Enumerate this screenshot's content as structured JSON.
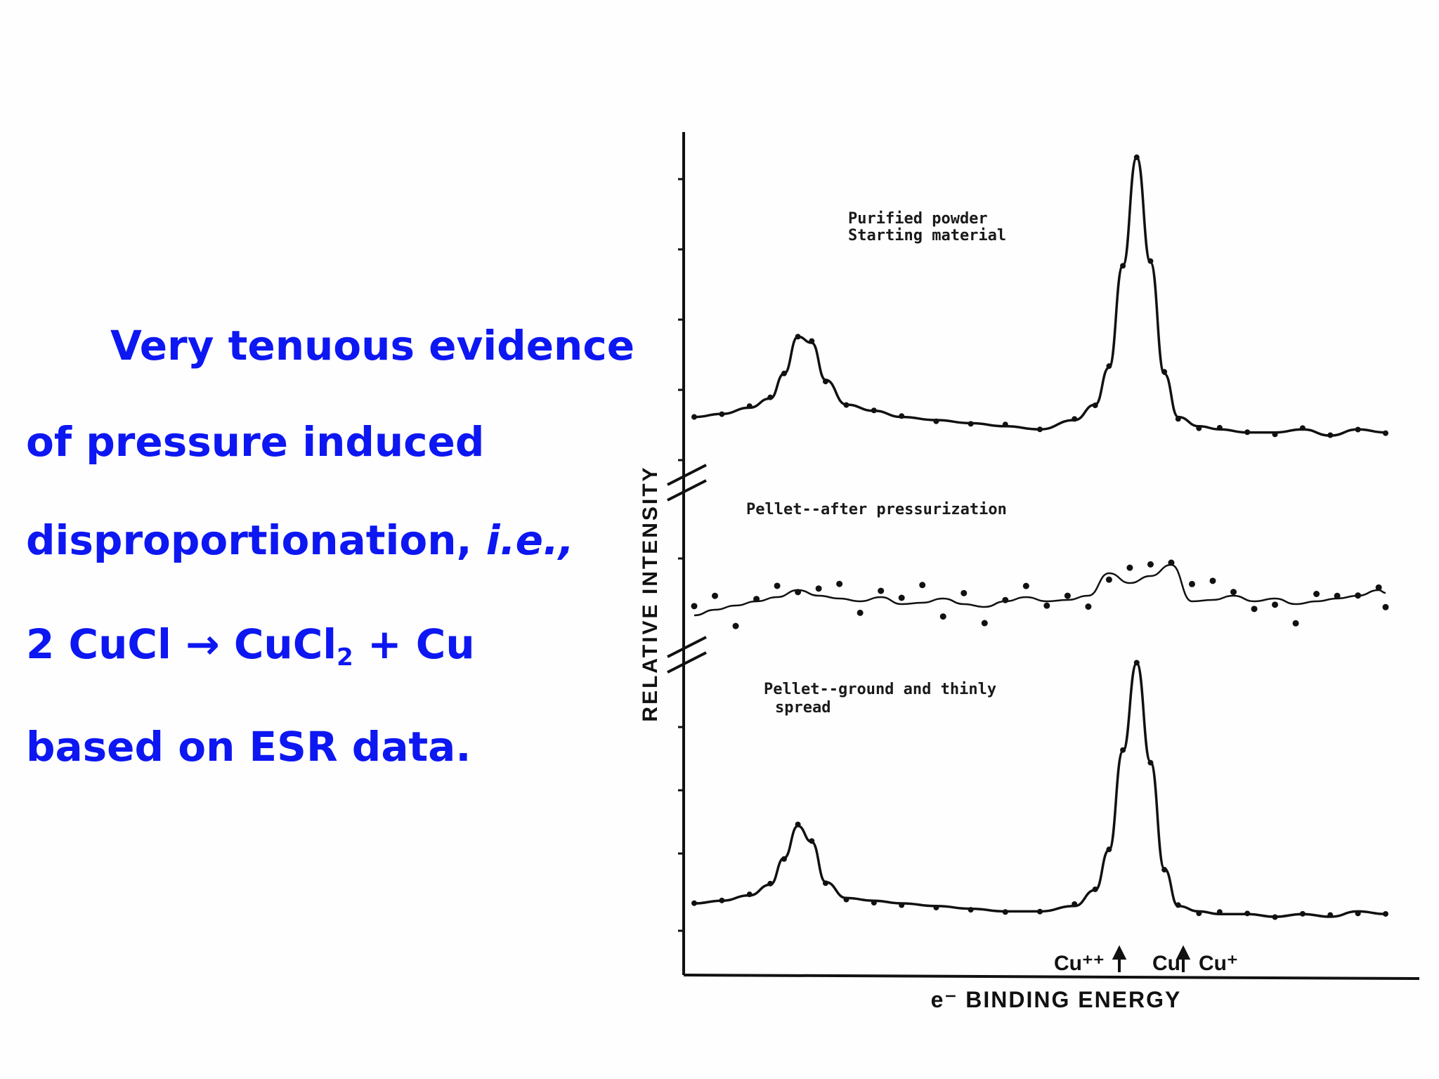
{
  "text_block": {
    "line1": "Very tenuous evidence",
    "line2": "of pressure induced",
    "line3_main": "disproportionation, ",
    "line3_italic": "i.e.,",
    "line4_part1": "2 CuCl ",
    "line4_arrow": "→",
    "line4_part2": " CuCl",
    "line4_sub": "2",
    "line4_part3": " + Cu",
    "line5": "based on ESR data."
  },
  "colors": {
    "text_blue": "#0d17f2",
    "ink": "#111111"
  },
  "chart_data": {
    "type": "line",
    "title": "",
    "xlabel": "e⁻ BINDING ENERGY",
    "ylabel": "RELATIVE INTENSITY",
    "grid": false,
    "axis_ticks_numbered": false,
    "peak_markers": {
      "cu2": "Cu⁺⁺",
      "cu_combined": "Cu",
      "cu_plus": "Cu⁺"
    },
    "series": [
      {
        "name": "Purified powder\nStarting material",
        "label_lines": [
          "Purified powder",
          "Starting material"
        ],
        "x": [
          0,
          4,
          8,
          11,
          13,
          15,
          17,
          19,
          22,
          26,
          30,
          35,
          40,
          45,
          50,
          55,
          58,
          60,
          62,
          64,
          66,
          68,
          70,
          73,
          76,
          80,
          84,
          88,
          92,
          96,
          100
        ],
        "values": [
          0.06,
          0.07,
          0.09,
          0.12,
          0.2,
          0.32,
          0.3,
          0.18,
          0.1,
          0.08,
          0.06,
          0.05,
          0.04,
          0.03,
          0.02,
          0.05,
          0.1,
          0.22,
          0.55,
          0.9,
          0.56,
          0.2,
          0.06,
          0.03,
          0.02,
          0.01,
          0.01,
          0.02,
          0.0,
          0.02,
          0.01
        ]
      },
      {
        "name": "Pellet--after pressurization",
        "label_lines": [
          "Pellet--after pressurization"
        ],
        "x": [
          0,
          3,
          6,
          9,
          12,
          15,
          18,
          21,
          24,
          27,
          30,
          33,
          36,
          39,
          42,
          45,
          48,
          51,
          54,
          57,
          60,
          63,
          66,
          69,
          72,
          75,
          78,
          81,
          84,
          87,
          90,
          93,
          96,
          99,
          100
        ],
        "values": [
          0.02,
          0.06,
          0.09,
          0.12,
          0.15,
          0.2,
          0.16,
          0.14,
          0.12,
          0.15,
          0.1,
          0.11,
          0.14,
          0.1,
          0.08,
          0.12,
          0.15,
          0.12,
          0.13,
          0.16,
          0.32,
          0.25,
          0.3,
          0.38,
          0.12,
          0.13,
          0.16,
          0.12,
          0.14,
          0.1,
          0.12,
          0.14,
          0.16,
          0.2,
          0.18
        ]
      },
      {
        "name": "Pellet--ground and thinly\nspread",
        "label_lines": [
          "Pellet--ground and thinly",
          "spread"
        ],
        "x": [
          0,
          4,
          8,
          11,
          13,
          15,
          17,
          19,
          22,
          26,
          30,
          35,
          40,
          45,
          50,
          55,
          58,
          60,
          62,
          64,
          66,
          68,
          70,
          73,
          76,
          80,
          84,
          88,
          92,
          96,
          100
        ],
        "values": [
          0.05,
          0.06,
          0.08,
          0.12,
          0.22,
          0.34,
          0.28,
          0.13,
          0.07,
          0.06,
          0.05,
          0.04,
          0.03,
          0.02,
          0.02,
          0.04,
          0.1,
          0.25,
          0.62,
          0.95,
          0.58,
          0.18,
          0.04,
          0.02,
          0.01,
          0.01,
          0.0,
          0.01,
          0.0,
          0.02,
          0.01
        ]
      }
    ]
  }
}
